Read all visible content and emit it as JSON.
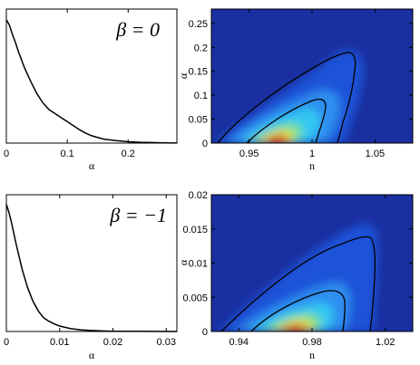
{
  "chart_data": [
    {
      "type": "line",
      "panel": "top-left",
      "annotation": "β = 0",
      "xlabel": "α",
      "ylabel": "",
      "xlim": [
        0,
        0.28
      ],
      "ylim": [
        0,
        1
      ],
      "xticks": [
        0,
        0.1,
        0.2
      ],
      "xtick_labels": [
        "0",
        "0.1",
        "0.2"
      ],
      "yticks_shown": false,
      "x": [
        0,
        0.005,
        0.01,
        0.015,
        0.02,
        0.03,
        0.04,
        0.05,
        0.06,
        0.07,
        0.08,
        0.09,
        0.1,
        0.11,
        0.12,
        0.13,
        0.14,
        0.16,
        0.18,
        0.2,
        0.22,
        0.24,
        0.26,
        0.28
      ],
      "y": [
        0.92,
        0.88,
        0.81,
        0.75,
        0.68,
        0.56,
        0.46,
        0.37,
        0.3,
        0.25,
        0.22,
        0.19,
        0.16,
        0.13,
        0.1,
        0.075,
        0.055,
        0.03,
        0.018,
        0.01,
        0.006,
        0.004,
        0.002,
        0.001
      ]
    },
    {
      "type": "heatmap",
      "panel": "top-right",
      "xlabel": "n",
      "ylabel": "α",
      "xlim": [
        0.92,
        1.08
      ],
      "ylim": [
        0,
        0.28
      ],
      "xticks": [
        0.95,
        1,
        1.05
      ],
      "xtick_labels": [
        "0.95",
        "1",
        "1.05"
      ],
      "yticks": [
        0,
        0.05,
        0.1,
        0.15,
        0.2,
        0.25
      ],
      "ytick_labels": [
        "0",
        "0.05",
        "0.1",
        "0.15",
        "0.2",
        "0.25"
      ],
      "peak": [
        0.965,
        0.005
      ],
      "colormap": "jet"
    },
    {
      "type": "line",
      "panel": "bottom-left",
      "annotation": "β = −1",
      "xlabel": "α",
      "ylabel": "",
      "xlim": [
        0,
        0.032
      ],
      "ylim": [
        0,
        1
      ],
      "xticks": [
        0,
        0.01,
        0.02,
        0.03
      ],
      "xtick_labels": [
        "0",
        "0.01",
        "0.02",
        "0.03"
      ],
      "yticks_shown": false,
      "x": [
        0,
        0.0005,
        0.001,
        0.0015,
        0.002,
        0.003,
        0.004,
        0.005,
        0.006,
        0.007,
        0.008,
        0.009,
        0.01,
        0.012,
        0.014,
        0.016,
        0.018,
        0.02,
        0.024,
        0.028,
        0.032
      ],
      "y": [
        0.93,
        0.87,
        0.79,
        0.7,
        0.61,
        0.45,
        0.32,
        0.22,
        0.15,
        0.1,
        0.075,
        0.055,
        0.04,
        0.022,
        0.012,
        0.007,
        0.004,
        0.002,
        0.001,
        0.0005,
        0.0002
      ]
    },
    {
      "type": "heatmap",
      "panel": "bottom-right",
      "xlabel": "n",
      "ylabel": "α",
      "xlim": [
        0.925,
        1.035
      ],
      "ylim": [
        0,
        0.02
      ],
      "xticks": [
        0.94,
        0.98,
        1.02
      ],
      "xtick_labels": [
        "0.94",
        "0.98",
        "1.02"
      ],
      "yticks": [
        0,
        0.005,
        0.01,
        0.015,
        0.02
      ],
      "ytick_labels": [
        "0",
        "0.005",
        "0.01",
        "0.015",
        "0.02"
      ],
      "peak": [
        0.978,
        0.0005
      ],
      "colormap": "jet"
    }
  ]
}
